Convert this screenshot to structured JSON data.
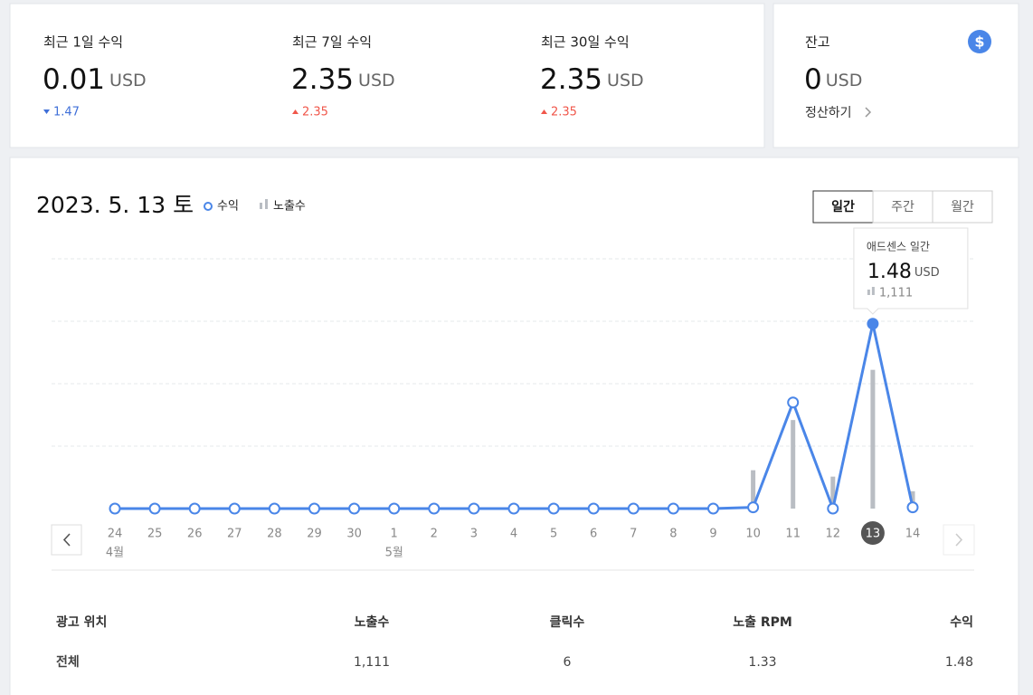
{
  "summary": [
    {
      "label": "최근 1일 수익",
      "value": "0.01",
      "unit": "USD",
      "change": "1.47",
      "direction": "down"
    },
    {
      "label": "최근 7일 수익",
      "value": "2.35",
      "unit": "USD",
      "change": "2.35",
      "direction": "up"
    },
    {
      "label": "최근 30일 수익",
      "value": "2.35",
      "unit": "USD",
      "change": "2.35",
      "direction": "up"
    }
  ],
  "balance": {
    "label": "잔고",
    "value": "0",
    "unit": "USD",
    "link": "정산하기"
  },
  "chart_data": {
    "type": "line",
    "title": "2023. 5. 13 토",
    "categories": [
      "24",
      "25",
      "26",
      "27",
      "28",
      "29",
      "30",
      "1",
      "2",
      "3",
      "4",
      "5",
      "6",
      "7",
      "8",
      "9",
      "10",
      "11",
      "12",
      "13",
      "14"
    ],
    "months": [
      "4월",
      null,
      null,
      null,
      null,
      null,
      null,
      "5월",
      null,
      null,
      null,
      null,
      null,
      null,
      null,
      null,
      null,
      null,
      null,
      null,
      null
    ],
    "series": [
      {
        "name": "수익",
        "color": "#4a86e8",
        "values": [
          0,
          0,
          0,
          0,
          0,
          0,
          0,
          0,
          0,
          0,
          0,
          0,
          0,
          0,
          0,
          0,
          0.01,
          0.85,
          0,
          1.48,
          0.01
        ]
      },
      {
        "name": "노출수",
        "color": "#b9bdc3",
        "type": "bar",
        "axis": "y2",
        "values": [
          0,
          0,
          0,
          0,
          0,
          0,
          0,
          0,
          0,
          0,
          0,
          0,
          0,
          0,
          0,
          0,
          307,
          709,
          256,
          1111,
          139
        ]
      }
    ],
    "ylim": [
      0,
      2
    ],
    "y2lim": [
      0,
      2000
    ],
    "grid": true,
    "selected_category": "13",
    "tooltip": {
      "title": "애드센스 일간",
      "value": "1.48",
      "unit": "USD",
      "impressions": "1,111"
    }
  },
  "tabs": [
    "일간",
    "주간",
    "월간"
  ],
  "active_tab": "일간",
  "table": {
    "header": [
      "광고 위치",
      "노출수",
      "클릭수",
      "노출 RPM",
      "수익"
    ],
    "rows": [
      [
        "전체",
        "1,111",
        "6",
        "1.33",
        "1.48"
      ]
    ]
  }
}
